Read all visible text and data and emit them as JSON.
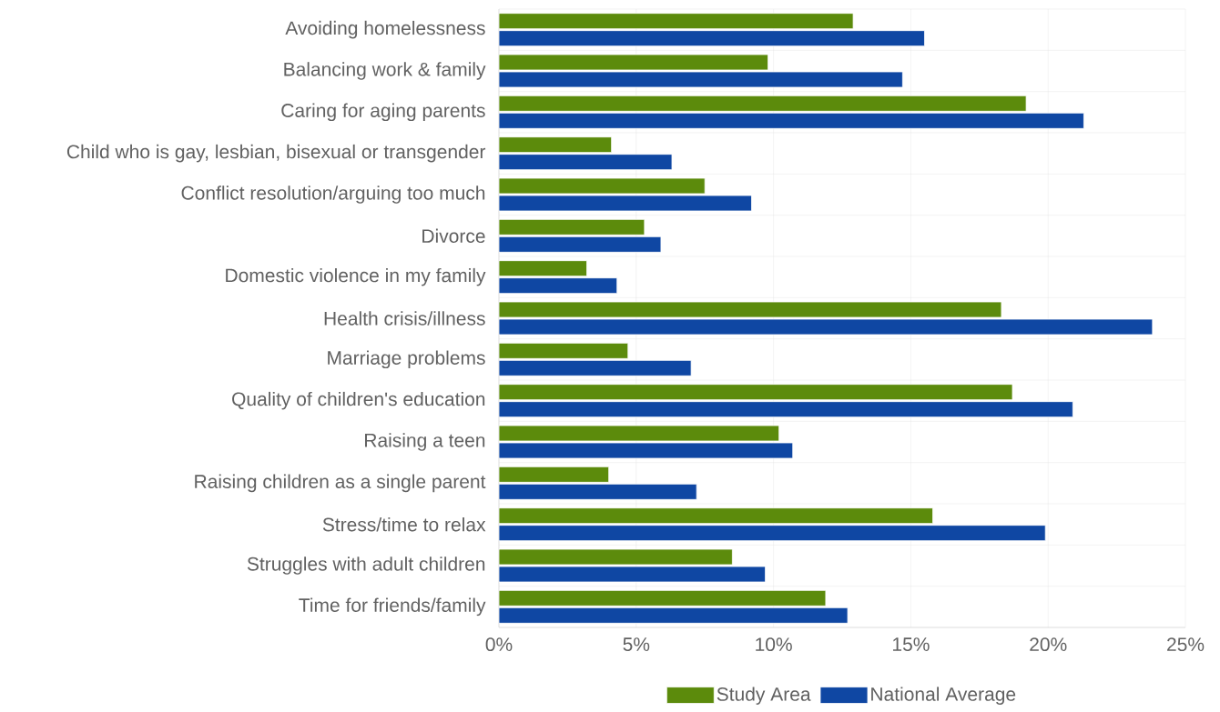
{
  "chart_data": {
    "type": "bar",
    "orientation": "horizontal",
    "categories": [
      "Avoiding homelessness",
      "Balancing work & family",
      "Caring for aging parents",
      "Child who is gay, lesbian, bisexual or transgender",
      "Conflict resolution/arguing too much",
      "Divorce",
      "Domestic violence in my family",
      "Health crisis/illness",
      "Marriage problems",
      "Quality of children's education",
      "Raising a teen",
      "Raising children as a single parent",
      "Stress/time to relax",
      "Struggles with adult children",
      "Time for friends/family"
    ],
    "series": [
      {
        "name": "Study Area",
        "color": "#5c8b0c",
        "values": [
          12.9,
          9.8,
          19.2,
          4.1,
          7.5,
          5.3,
          3.2,
          18.3,
          4.7,
          18.7,
          10.2,
          4.0,
          15.8,
          8.5,
          11.9
        ]
      },
      {
        "name": "National Average",
        "color": "#0f47a3",
        "values": [
          15.5,
          14.7,
          21.3,
          6.3,
          9.2,
          5.9,
          4.3,
          23.8,
          7.0,
          20.9,
          10.7,
          7.2,
          19.9,
          9.7,
          12.7
        ]
      }
    ],
    "xlim": [
      0,
      25
    ],
    "xticks": [
      {
        "value": 0,
        "label": "0%"
      },
      {
        "value": 5,
        "label": "5%"
      },
      {
        "value": 10,
        "label": "10%"
      },
      {
        "value": 15,
        "label": "15%"
      },
      {
        "value": 20,
        "label": "20%"
      },
      {
        "value": 25,
        "label": "25%"
      }
    ],
    "grid": true,
    "legend": "bottom"
  }
}
